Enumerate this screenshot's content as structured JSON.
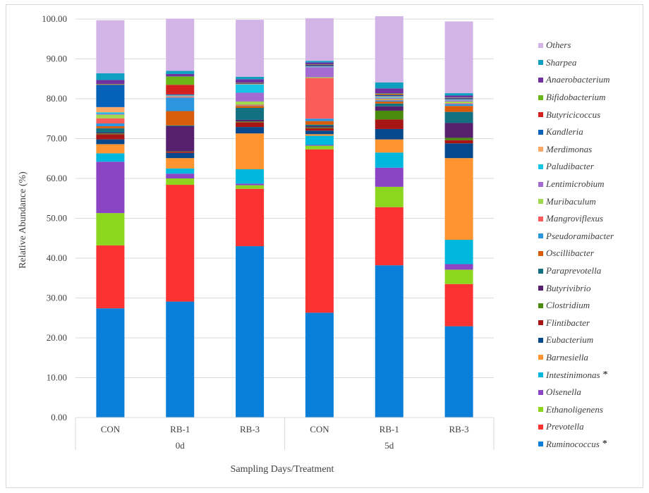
{
  "chart_data": {
    "type": "bar",
    "stacked": true,
    "title": "",
    "xlabel": "Sampling Days/Treatment",
    "ylabel": "Relative Abundance (%)",
    "ylim": [
      0,
      100
    ],
    "yticks": [
      "0.00",
      "10.00",
      "20.00",
      "30.00",
      "40.00",
      "50.00",
      "60.00",
      "70.00",
      "80.00",
      "90.00",
      "100.00"
    ],
    "grid": true,
    "legend_position": "right",
    "groups": [
      {
        "label": "0d",
        "categories": [
          "CON",
          "RB-1",
          "RB-3"
        ]
      },
      {
        "label": "5d",
        "categories": [
          "CON",
          "RB-1",
          "RB-3"
        ]
      }
    ],
    "categories": [
      "CON (0d)",
      "RB-1 (0d)",
      "RB-3 (0d)",
      "CON (5d)",
      "RB-1 (5d)",
      "RB-3 (5d)"
    ],
    "series": [
      {
        "name": "Ruminococcus",
        "marker": "*",
        "color": "#0a7fd9",
        "values": [
          27.4,
          29.1,
          43.0,
          26.3,
          38.2,
          22.9
        ]
      },
      {
        "name": "Prevotella",
        "color": "#fa3232",
        "values": [
          15.8,
          29.3,
          14.4,
          41.0,
          14.6,
          10.6
        ]
      },
      {
        "name": "Ethanoligenens",
        "color": "#8dd61f",
        "values": [
          8.1,
          1.6,
          0.9,
          0.9,
          5.1,
          3.6
        ]
      },
      {
        "name": "Olsenella",
        "color": "#8b44c4",
        "values": [
          12.9,
          1.2,
          0.4,
          0.2,
          4.8,
          1.4
        ]
      },
      {
        "name": "Intestinimonas",
        "marker": "*",
        "color": "#00b8de",
        "values": [
          2.1,
          1.3,
          3.6,
          2.3,
          3.8,
          6.1
        ]
      },
      {
        "name": "Barnesiella",
        "color": "#ff9430",
        "values": [
          2.3,
          2.6,
          9.0,
          0.4,
          3.3,
          20.5
        ]
      },
      {
        "name": "Eubacterium",
        "color": "#05488c",
        "values": [
          1.2,
          1.3,
          1.6,
          0.9,
          2.6,
          3.7
        ]
      },
      {
        "name": "Flintibacter",
        "color": "#a81515",
        "values": [
          1.3,
          0.3,
          1.2,
          0.6,
          2.4,
          0.8
        ]
      },
      {
        "name": "Clostridium",
        "color": "#4a8a0c",
        "values": [
          0.2,
          0.1,
          0.2,
          0.2,
          2.2,
          0.6
        ]
      },
      {
        "name": "Butyrivibrio",
        "color": "#56206e",
        "values": [
          0.2,
          6.3,
          0.4,
          0.3,
          1.1,
          3.7
        ]
      },
      {
        "name": "Paraprevotella",
        "color": "#137080",
        "values": [
          1.1,
          0.2,
          3.0,
          0.4,
          0.7,
          2.8
        ]
      },
      {
        "name": "Oscillibacter",
        "color": "#d95c0a",
        "values": [
          0.5,
          3.6,
          0.5,
          0.9,
          0.5,
          1.5
        ]
      },
      {
        "name": "Pseudoramibacter",
        "color": "#2b95de",
        "values": [
          0.7,
          3.4,
          0.1,
          0.6,
          0.3,
          0.5
        ]
      },
      {
        "name": "Mangroviflexus",
        "color": "#fa5c5c",
        "values": [
          1.3,
          0.2,
          0.2,
          10.2,
          0.2,
          0.2
        ]
      },
      {
        "name": "Muribaculum",
        "color": "#9ed94f",
        "values": [
          0.9,
          0.1,
          0.8,
          0.2,
          0.2,
          0.4
        ]
      },
      {
        "name": "Lentimicrobium",
        "color": "#a36ad1",
        "values": [
          0.2,
          0.1,
          2.2,
          2.5,
          0.2,
          0.3
        ]
      },
      {
        "name": "Paludibacter",
        "color": "#17c4e3",
        "values": [
          0.4,
          0.1,
          2.1,
          0.1,
          0.2,
          0.1
        ]
      },
      {
        "name": "Merdimonas",
        "color": "#ffa866",
        "values": [
          1.3,
          0.1,
          0.1,
          0.1,
          0.2,
          0.1
        ]
      },
      {
        "name": "Kandleria",
        "color": "#0562b8",
        "values": [
          5.6,
          0.2,
          0.1,
          0.3,
          0.3,
          0.3
        ]
      },
      {
        "name": "Butyricicoccus",
        "color": "#d41f1f",
        "values": [
          0.1,
          2.4,
          0.1,
          0.1,
          0.2,
          0.1
        ]
      },
      {
        "name": "Bifidobacterium",
        "color": "#6ab517",
        "values": [
          0.1,
          2.1,
          0.1,
          0.1,
          0.2,
          0.1
        ]
      },
      {
        "name": "Anaerobacterium",
        "color": "#7030a0",
        "values": [
          1.0,
          0.6,
          0.9,
          0.5,
          1.3,
          0.5
        ]
      },
      {
        "name": "Sharpea",
        "color": "#0fa0c0",
        "values": [
          1.7,
          0.8,
          0.6,
          0.4,
          1.5,
          0.6
        ]
      },
      {
        "name": "Others",
        "color": "#d2b4e6",
        "values": [
          13.3,
          13.1,
          14.3,
          10.7,
          16.6,
          18.0
        ]
      }
    ]
  }
}
